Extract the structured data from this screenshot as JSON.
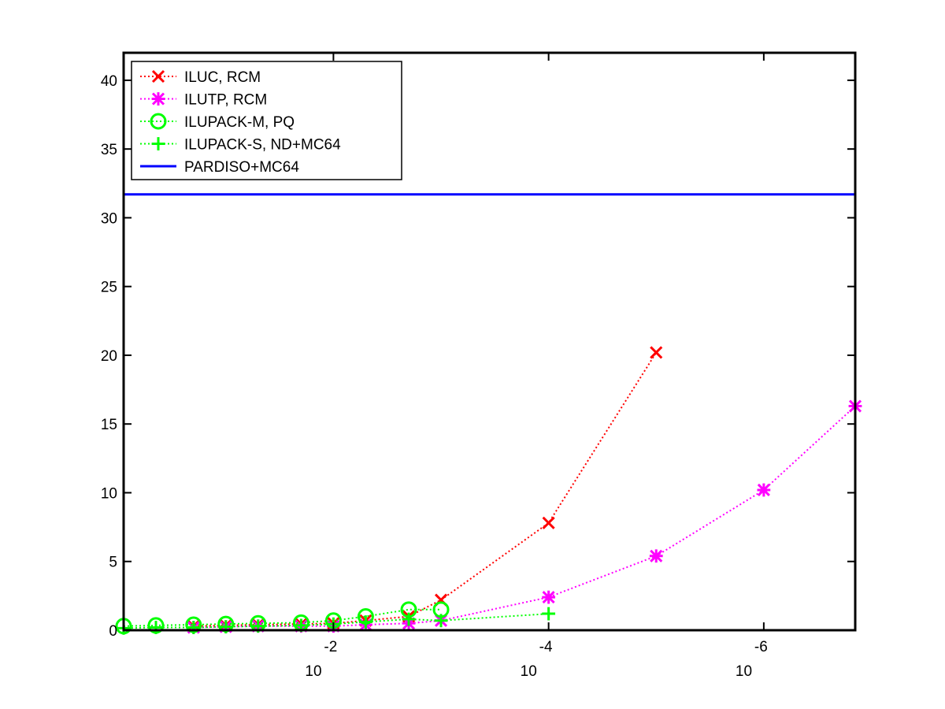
{
  "chart_data": {
    "type": "line",
    "title": "",
    "xlabel": "",
    "ylabel": "",
    "x_scale": "log10-reversed",
    "x_tick_note": "x values are log10 of the drop tolerance",
    "xlim": [
      -0.05,
      -6.85
    ],
    "ylim": [
      0,
      42
    ],
    "y_ticks": [
      0,
      5,
      10,
      15,
      20,
      25,
      30,
      35,
      40
    ],
    "x_ticks": [
      {
        "exp": -2,
        "base_label": "10",
        "exp_label": "-2"
      },
      {
        "exp": -4,
        "base_label": "10",
        "exp_label": "-4"
      },
      {
        "exp": -6,
        "base_label": "10",
        "exp_label": "-6"
      }
    ],
    "grid": false,
    "legend_position": "top-left",
    "series": [
      {
        "name": "ILUC, RCM",
        "color": "#ff0000",
        "marker": "x",
        "line_style": "dotted",
        "x": [
          -0.7,
          -1.0,
          -1.3,
          -1.7,
          -2.0,
          -2.3,
          -2.7,
          -3.0,
          -4.0,
          -5.0
        ],
        "y": [
          0.3,
          0.35,
          0.4,
          0.45,
          0.5,
          0.7,
          1.0,
          2.2,
          7.8,
          20.2
        ]
      },
      {
        "name": "ILUTP, RCM",
        "color": "#ff00ff",
        "marker": "asterisk",
        "line_style": "dotted",
        "x": [
          -0.7,
          -1.0,
          -1.3,
          -1.7,
          -2.0,
          -2.3,
          -2.7,
          -3.0,
          -4.0,
          -5.0,
          -6.0,
          -6.85
        ],
        "y": [
          0.2,
          0.25,
          0.3,
          0.3,
          0.3,
          0.4,
          0.5,
          0.7,
          2.4,
          5.4,
          10.2,
          16.3
        ]
      },
      {
        "name": "ILUPACK-M, PQ",
        "color": "#00ff00",
        "marker": "circle",
        "line_style": "dotted",
        "x": [
          -0.05,
          -0.35,
          -0.7,
          -1.0,
          -1.3,
          -1.7,
          -2.0,
          -2.3,
          -2.7,
          -3.0
        ],
        "y": [
          0.3,
          0.35,
          0.4,
          0.45,
          0.5,
          0.55,
          0.7,
          1.0,
          1.5,
          1.5
        ]
      },
      {
        "name": "ILUPACK-S, ND+MC64",
        "color": "#00ff00",
        "marker": "plus",
        "line_style": "dotted",
        "x": [
          -0.05,
          -0.35,
          -0.7,
          -1.0,
          -1.3,
          -1.7,
          -2.0,
          -2.3,
          -2.7,
          -3.0,
          -4.0
        ],
        "y": [
          0.15,
          0.2,
          0.2,
          0.25,
          0.3,
          0.35,
          0.45,
          0.6,
          0.8,
          0.7,
          1.2
        ]
      },
      {
        "name": "PARDISO+MC64",
        "color": "#0000ff",
        "marker": "none",
        "line_style": "solid",
        "x": [
          -0.05,
          -6.85
        ],
        "y": [
          31.7,
          31.7
        ]
      }
    ]
  }
}
